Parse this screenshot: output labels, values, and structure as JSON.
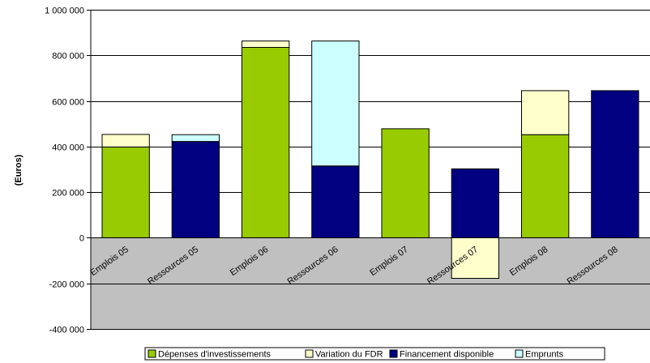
{
  "chart_data": {
    "type": "bar",
    "stacked": true,
    "ylabel": "(Euros)",
    "xlabel": "",
    "title": "",
    "ylim": [
      -400000,
      1000000
    ],
    "yticks": [
      1000000,
      800000,
      600000,
      400000,
      200000,
      0,
      -200000,
      -400000
    ],
    "ytick_labels": [
      "1 000 000",
      "800 000",
      "600 000",
      "400 000",
      "200 000",
      "0",
      "-200 000",
      "-400 000"
    ],
    "categories": [
      "Emplois 05",
      "Ressources 05",
      "Emplois 06",
      "Ressources 06",
      "Emplois 07",
      "Ressources 07",
      "Emplois 08",
      "Ressources 08"
    ],
    "series": [
      {
        "name": "Dépenses d'investissements",
        "color": "#99cc00",
        "values": [
          398000,
          0,
          835000,
          0,
          478000,
          0,
          452000,
          0
        ]
      },
      {
        "name": "Variation du FDR",
        "color": "#ffffcc",
        "values": [
          55000,
          0,
          28000,
          0,
          0,
          -178000,
          193000,
          0
        ]
      },
      {
        "name": "Financement disponible",
        "color": "#000080",
        "values": [
          0,
          422000,
          0,
          315000,
          0,
          302000,
          0,
          645000
        ]
      },
      {
        "name": "Emprunts",
        "color": "#ccffff",
        "values": [
          0,
          30000,
          0,
          548000,
          0,
          0,
          0,
          0
        ]
      }
    ],
    "grid": true,
    "legend_position": "bottom"
  }
}
